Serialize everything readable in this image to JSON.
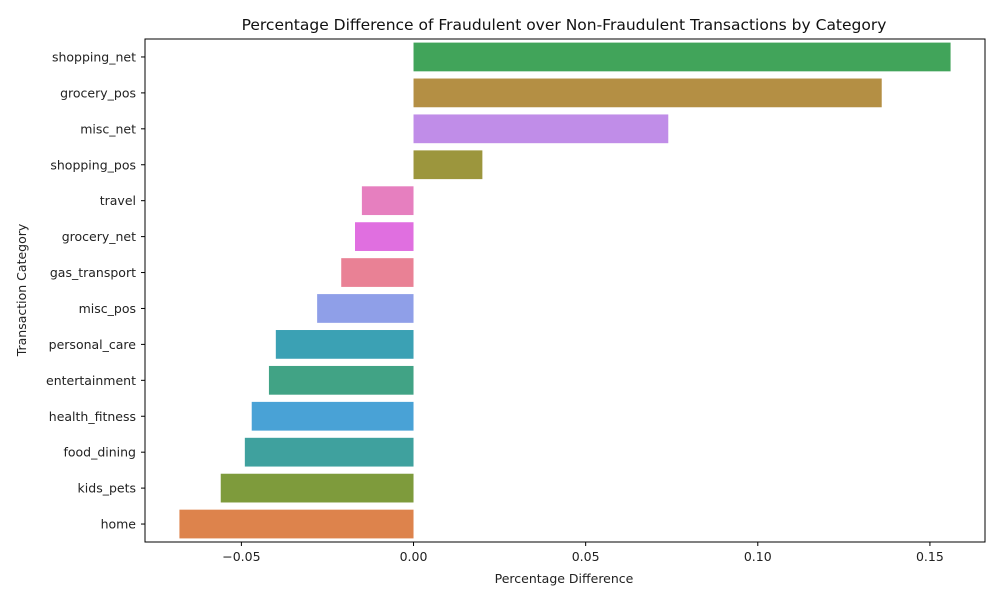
{
  "chart_data": {
    "type": "bar",
    "orientation": "horizontal",
    "title": "Percentage Difference of Fraudulent over Non-Fraudulent Transactions by Category",
    "xlabel": "Percentage Difference",
    "ylabel": "Transaction Category",
    "xlim": [
      -0.078,
      0.166
    ],
    "xticks": [
      -0.05,
      0.0,
      0.05,
      0.1,
      0.15
    ],
    "xtick_labels": [
      "−0.05",
      "0.00",
      "0.05",
      "0.10",
      "0.15"
    ],
    "grid": false,
    "categories": [
      "shopping_net",
      "grocery_pos",
      "misc_net",
      "shopping_pos",
      "travel",
      "grocery_net",
      "gas_transport",
      "misc_pos",
      "personal_care",
      "entertainment",
      "health_fitness",
      "food_dining",
      "kids_pets",
      "home"
    ],
    "values": [
      0.156,
      0.136,
      0.074,
      0.02,
      -0.015,
      -0.017,
      -0.021,
      -0.028,
      -0.04,
      -0.042,
      -0.047,
      -0.049,
      -0.056,
      -0.068
    ],
    "colors": [
      "#41a45a",
      "#b48f44",
      "#c08de8",
      "#9c963d",
      "#e67fbf",
      "#e06fe0",
      "#e98195",
      "#8f9fe8",
      "#3ba1b4",
      "#41a385",
      "#49a2d6",
      "#3fa19e",
      "#7e9b3c",
      "#dd834c"
    ]
  }
}
